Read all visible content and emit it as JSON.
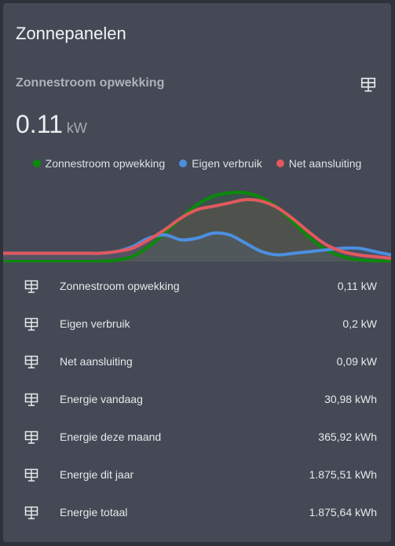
{
  "card": {
    "title": "Zonnepanelen",
    "sensor_name": "Zonnestroom opwekking",
    "value": "0.11",
    "unit": "kW",
    "header_icon": "solar-panel-icon"
  },
  "colors": {
    "card_bg": "#444955",
    "page_bg": "#2f323a",
    "series_opwekking": "#0a8a0a",
    "series_eigen": "#4c8fe0",
    "series_net": "#e0595e"
  },
  "chart_data": {
    "type": "area",
    "x": [
      0,
      1,
      2,
      3,
      4,
      5,
      6,
      7,
      8,
      9,
      10,
      11,
      12,
      13,
      14,
      15,
      16,
      17,
      18,
      19,
      20,
      21,
      22,
      23,
      24
    ],
    "series": [
      {
        "name": "Zonnestroom opwekking",
        "color": "#0a8a0a",
        "values": [
          0,
          0,
          0,
          0,
          0,
          0,
          0.02,
          0.08,
          0.3,
          0.9,
          1.7,
          2.6,
          3.4,
          3.9,
          4.1,
          4.1,
          3.8,
          3.2,
          2.3,
          1.4,
          0.7,
          0.3,
          0.1,
          0.05,
          0
        ]
      },
      {
        "name": "Eigen verbruik",
        "color": "#4c8fe0",
        "values": [
          0.5,
          0.5,
          0.5,
          0.5,
          0.5,
          0.5,
          0.5,
          0.6,
          0.9,
          1.4,
          1.6,
          1.3,
          1.4,
          1.7,
          1.6,
          1.1,
          0.6,
          0.4,
          0.5,
          0.6,
          0.7,
          0.8,
          0.8,
          0.6,
          0.4
        ]
      },
      {
        "name": "Net aansluiting",
        "color": "#e0595e",
        "values": [
          0.5,
          0.5,
          0.5,
          0.5,
          0.5,
          0.5,
          0.5,
          0.6,
          0.8,
          1.3,
          1.9,
          2.6,
          3.1,
          3.3,
          3.5,
          3.7,
          3.6,
          3.2,
          2.5,
          1.7,
          1.0,
          0.6,
          0.4,
          0.3,
          0.2
        ]
      }
    ],
    "ylim": [
      0,
      4.5
    ]
  },
  "entities": [
    {
      "icon": "solar-panel-icon",
      "label": "Zonnestroom opwekking",
      "value": "0,11 kW"
    },
    {
      "icon": "solar-panel-icon",
      "label": "Eigen verbruik",
      "value": "0,2 kW"
    },
    {
      "icon": "solar-panel-icon",
      "label": "Net aansluiting",
      "value": "0,09 kW"
    },
    {
      "icon": "solar-panel-icon",
      "label": "Energie vandaag",
      "value": "30,98 kWh"
    },
    {
      "icon": "solar-panel-icon",
      "label": "Energie deze maand",
      "value": "365,92 kWh"
    },
    {
      "icon": "solar-panel-icon",
      "label": "Energie dit jaar",
      "value": "1.875,51 kWh"
    },
    {
      "icon": "solar-panel-icon",
      "label": "Energie totaal",
      "value": "1.875,64 kWh"
    }
  ]
}
